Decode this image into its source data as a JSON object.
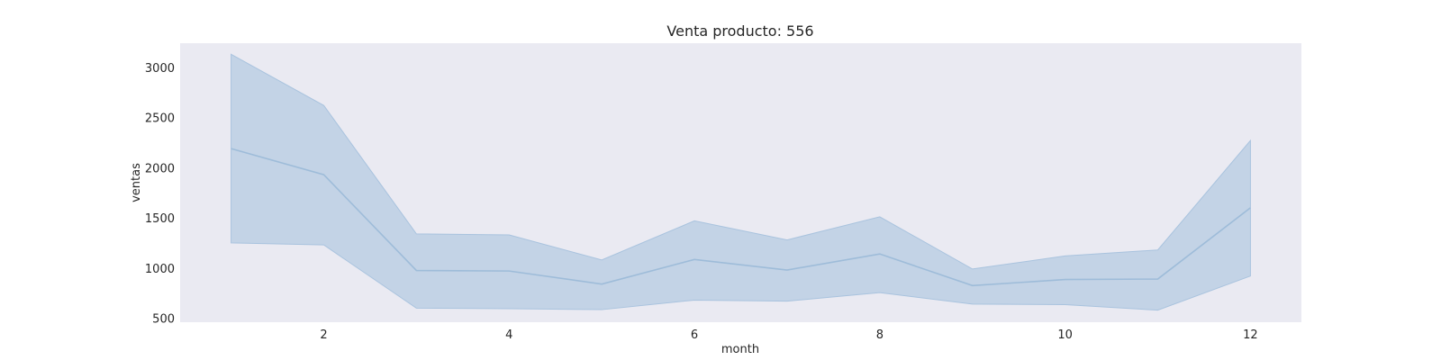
{
  "chart_data": {
    "type": "line",
    "title": "Venta producto: 556",
    "xlabel": "month",
    "ylabel": "ventas",
    "xlim": [
      0.45,
      12.55
    ],
    "ylim": [
      460,
      3240
    ],
    "xticks": [
      2,
      4,
      6,
      8,
      10,
      12
    ],
    "yticks": [
      500,
      1000,
      1500,
      2000,
      2500,
      3000
    ],
    "grid": false,
    "background": "#eaeaf2",
    "line_color": "#9ebcd9",
    "band_color": "#a9c3de",
    "x": [
      1,
      2,
      3,
      4,
      5,
      6,
      7,
      8,
      9,
      10,
      11,
      12
    ],
    "series": [
      {
        "values": [
          2190,
          1930,
          975,
          970,
          840,
          1085,
          980,
          1140,
          825,
          885,
          890,
          1600
        ],
        "ci_lower": [
          1250,
          1230,
          600,
          595,
          585,
          680,
          670,
          755,
          640,
          635,
          580,
          920
        ],
        "ci_upper": [
          3130,
          2620,
          1340,
          1330,
          1080,
          1470,
          1280,
          1510,
          990,
          1120,
          1180,
          2270
        ]
      }
    ]
  }
}
